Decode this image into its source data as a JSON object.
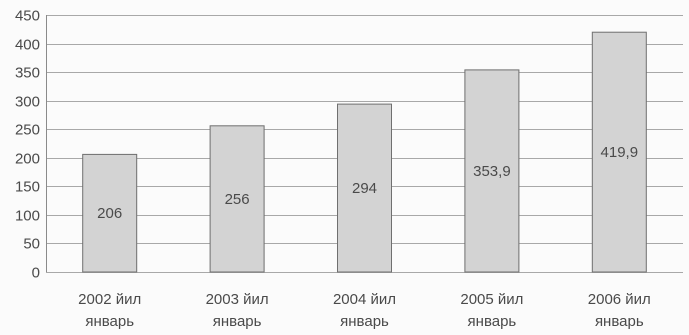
{
  "chart_data": {
    "type": "bar",
    "title": "",
    "xlabel": "",
    "ylabel": "",
    "categories": [
      [
        "2002 йил",
        "январь"
      ],
      [
        "2003 йил",
        "январь"
      ],
      [
        "2004 йил",
        "январь"
      ],
      [
        "2005 йил",
        "январь"
      ],
      [
        "2006 йил",
        "январь"
      ]
    ],
    "values": [
      206,
      256,
      294,
      353.9,
      419.9
    ],
    "data_labels": [
      "206",
      "256",
      "294",
      "353,9",
      "419,9"
    ],
    "ylim": [
      0,
      450
    ],
    "yticks": [
      0,
      50,
      100,
      150,
      200,
      250,
      300,
      350,
      400,
      450
    ],
    "grid": true,
    "legend": "none",
    "colors": {
      "bar": "#d3d3d3",
      "bar_edge": "#6f6f6f",
      "grid": "#a8a8a8",
      "text": "#4a4a4a"
    }
  }
}
